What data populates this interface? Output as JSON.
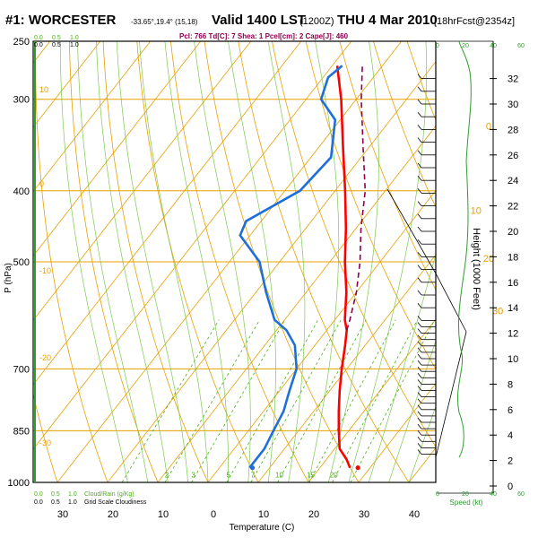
{
  "header": {
    "station": "#1: WORCESTER",
    "coords": "-33.65°,19.4° (15,18)",
    "valid": "Valid 1400 LST",
    "valid_z": "(1200Z)",
    "date": "THU 4 Mar 2010",
    "forecast": "[18hrFcst@2354z]",
    "parcel_info": "Pcl: 766 Td[C]: 7 Shea: 1 Pcel[cm]: 2 Cape[J]: 460"
  },
  "colors": {
    "temperature": "#ff0000",
    "dewpoint": "#1e6fd9",
    "parcel": "#8b004b",
    "isotherm": "#e8a000",
    "dry_adiabat": "#e8a000",
    "moist_adiabat": "#7ec850",
    "mixing_ratio": "#4caf1a",
    "wind_speed": "#2e9e2e"
  },
  "chart_data": {
    "type": "line",
    "title": "",
    "xlabel": "Temperature (C)",
    "ylabel": "P (hPa)",
    "y2label": "Height (1000 Feet)",
    "xlim": [
      -40,
      50
    ],
    "ylim": [
      1000,
      250
    ],
    "pressure_ticks": [
      250,
      300,
      400,
      500,
      700,
      850,
      1000
    ],
    "pressure_tick_labels": [
      "250",
      "300",
      "400",
      "500",
      "700",
      "850",
      "1000"
    ],
    "temp_ticks": [
      -40,
      -30,
      -20,
      -10,
      0,
      10,
      20,
      30,
      40
    ],
    "temp_tick_labels": [
      "40",
      "30",
      "20",
      "10",
      "0",
      "10",
      "20",
      "30",
      "40"
    ],
    "height_ticks": [
      0,
      2,
      4,
      6,
      8,
      10,
      12,
      14,
      16,
      18,
      20,
      22,
      24,
      26,
      28,
      30,
      32
    ],
    "height_tick_labels": [
      "0",
      "2",
      "4",
      "6",
      "8",
      "10",
      "12",
      "14",
      "16",
      "18",
      "20",
      "22",
      "24",
      "26",
      "28",
      "30",
      "32"
    ],
    "cloud_scale_top": [
      "0.0",
      "0.5",
      "1.0"
    ],
    "cloud_legend_bottom": [
      "0.0",
      "0.5",
      "1.0",
      "Cloud/Rain (g/Kg)",
      "Grid Scale Cloudiness"
    ],
    "speed_axis_top": [
      "0",
      "20",
      "40",
      "60"
    ],
    "speed_axis_bottom": [
      "0",
      "20",
      "40",
      "60"
    ],
    "speed_label": "Speed (kt)",
    "isotherm_labels": [
      "0",
      "10",
      "20",
      "30"
    ],
    "dry_adiabat_labels": [
      "10",
      "0",
      "-10",
      "-20",
      "-30"
    ],
    "mixing_ratio_labels": [
      "2",
      "3",
      "5",
      "7",
      "10",
      "15",
      "20"
    ],
    "series": [
      {
        "name": "Temperature",
        "p": [
          955,
          930,
          900,
          850,
          800,
          750,
          700,
          650,
          620,
          600,
          550,
          500,
          450,
          400,
          350,
          300,
          270
        ],
        "t": [
          26,
          24,
          21,
          18,
          15,
          12,
          9,
          6,
          4,
          2,
          -2,
          -7,
          -12,
          -18,
          -25,
          -33,
          -39
        ]
      },
      {
        "name": "Dewpoint",
        "p": [
          955,
          930,
          900,
          850,
          800,
          750,
          700,
          650,
          620,
          600,
          550,
          500,
          460,
          440,
          400,
          360,
          320,
          300,
          280,
          270
        ],
        "t": [
          6,
          6,
          6,
          5,
          4,
          2,
          0,
          -4,
          -8,
          -12,
          -18,
          -24,
          -32,
          -33,
          -27,
          -26,
          -31,
          -37,
          -39,
          -38
        ]
      },
      {
        "name": "Parcel",
        "p": [
          620,
          600,
          550,
          500,
          450,
          400,
          350,
          300,
          270
        ],
        "t": [
          4,
          3,
          0,
          -4,
          -9,
          -14,
          -21,
          -29,
          -34
        ]
      }
    ],
    "surface_points": {
      "t": 26.5,
      "td": 5.5,
      "p": 955
    },
    "wind_barb_heights": [
      2.5,
      3,
      3.5,
      4,
      4.5,
      5,
      5.5,
      6,
      6.5,
      7,
      7.5,
      8,
      8.5,
      9,
      9.5,
      10,
      10.5,
      11,
      11.5,
      12,
      12.5,
      13,
      14,
      15,
      16,
      17,
      18,
      19,
      20,
      21,
      22,
      23,
      24,
      25,
      26,
      27,
      28,
      29,
      30,
      31,
      32
    ]
  }
}
